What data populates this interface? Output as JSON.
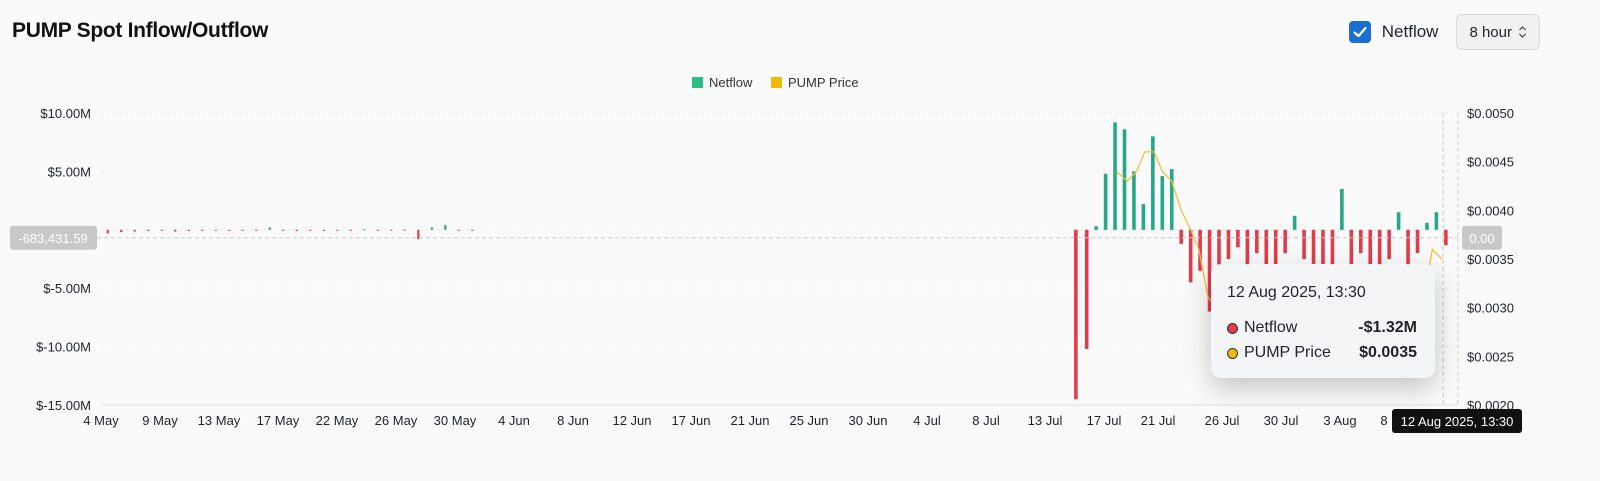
{
  "header": {
    "title": "PUMP Spot Inflow/Outflow",
    "netflow_checkbox_label": "Netflow",
    "interval_select_value": "8 hour"
  },
  "colors": {
    "netflow_positive": "#24a886",
    "netflow_negative": "#e23b49",
    "price_line": "#f0c040",
    "legend_netflow": "#2ebd85",
    "legend_price": "#f0b90b"
  },
  "tooltip": {
    "date": "12 Aug 2025, 13:30",
    "rows": [
      {
        "label": "Netflow",
        "value": "-$1.32M",
        "color": "#e23b49"
      },
      {
        "label": "PUMP Price",
        "value": "$0.0035",
        "color": "#f0b90b"
      }
    ]
  },
  "crosshair": {
    "y_label": "-683,431.59",
    "y_value": -683431.59,
    "right_label": "0.00",
    "x_label": "12 Aug 2025, 13:30",
    "x_index": 99.4
  },
  "chart_data": {
    "type": "bar",
    "title": "PUMP Spot Inflow/Outflow",
    "legend": [
      "Netflow",
      "PUMP Price"
    ],
    "legend_position": "top-center",
    "grid": true,
    "x_tick_labels": [
      "4 May",
      "9 May",
      "13 May",
      "17 May",
      "22 May",
      "26 May",
      "30 May",
      "4 Jun",
      "8 Jun",
      "12 Jun",
      "17 Jun",
      "21 Jun",
      "25 Jun",
      "30 Jun",
      "4 Jul",
      "8 Jul",
      "13 Jul",
      "17 Jul",
      "21 Jul",
      "26 Jul",
      "30 Jul",
      "3 Aug",
      "8",
      "12 Aug 2025, 13:30"
    ],
    "y_left": {
      "ticks": [
        "$10.00M",
        "$5.00M",
        "$0",
        "$-5.00M",
        "$-10.00M",
        "$-15.00M"
      ],
      "range": [
        -15000000,
        10000000
      ]
    },
    "y_right": {
      "ticks": [
        "$0.0050",
        "$0.0045",
        "$0.0040",
        "$0.0035",
        "$0.0030",
        "$0.0025",
        "$0.0020"
      ],
      "range": [
        0.002,
        0.005
      ]
    },
    "series": [
      {
        "name": "Netflow",
        "type": "bar",
        "unit": "$M",
        "x_day_index": [
          0.5,
          1.5,
          2.5,
          3.5,
          4.5,
          5.5,
          6.5,
          7.5,
          8.5,
          9.5,
          10.5,
          11.5,
          12.5,
          13.5,
          14.5,
          15.5,
          16.5,
          17.5,
          18.5,
          19.5,
          20.5,
          21.5,
          22.5,
          23.5,
          24.5,
          25.5,
          26.5,
          27.5,
          72.2,
          73.0,
          73.7,
          74.4,
          75.1,
          75.8,
          76.5,
          77.2,
          77.9,
          78.6,
          79.3,
          80.0,
          80.7,
          81.4,
          82.1,
          82.8,
          83.5,
          84.2,
          84.9,
          85.6,
          86.3,
          87.0,
          87.7,
          88.4,
          89.1,
          89.8,
          90.5,
          91.2,
          91.9,
          92.6,
          93.3,
          94.0,
          94.7,
          95.4,
          96.1,
          96.8,
          97.5,
          98.2,
          98.9,
          99.6
        ],
        "values": [
          -0.3,
          -0.2,
          -0.15,
          -0.1,
          -0.05,
          -0.15,
          -0.1,
          -0.05,
          -0.05,
          -0.1,
          -0.05,
          -0.05,
          0.2,
          -0.05,
          -0.1,
          -0.05,
          -0.1,
          -0.05,
          -0.05,
          0.05,
          -0.05,
          -0.05,
          -0.05,
          -0.8,
          0.2,
          0.4,
          -0.05,
          -0.05,
          -14.5,
          -10.2,
          0.3,
          4.8,
          9.2,
          8.6,
          5.0,
          2.2,
          8.0,
          4.6,
          5.2,
          -1.2,
          -4.5,
          -3.5,
          -7.0,
          -3.0,
          -2.5,
          -1.5,
          -4.0,
          -2.0,
          -6.5,
          -3.0,
          -2.0,
          1.2,
          -2.5,
          -3.5,
          -4.0,
          -5.0,
          3.5,
          -3.0,
          -2.0,
          -4.0,
          -5.0,
          -2.5,
          1.5,
          -3.0,
          -2.0,
          0.6,
          1.5,
          -1.32
        ],
        "color": "#24a886",
        "negative_color": "#e23b49"
      },
      {
        "name": "PUMP Price",
        "type": "line",
        "axis": "right",
        "unit": "$",
        "x_day_index": [
          75.2,
          76.0,
          76.7,
          77.3,
          78.0,
          78.6,
          79.3,
          80.0,
          80.7,
          81.3,
          82.0,
          82.7,
          83.3,
          84.0,
          84.6,
          85.3,
          86.0,
          86.7,
          87.3,
          88.0,
          88.7,
          89.3,
          90.0,
          90.6,
          91.3,
          92.0,
          92.6,
          93.3,
          94.0,
          94.6,
          95.3,
          96.0,
          96.6,
          97.3,
          98.0,
          98.6,
          99.3
        ],
        "values": [
          0.0044,
          0.0043,
          0.0044,
          0.0046,
          0.0046,
          0.0044,
          0.0043,
          0.004,
          0.0038,
          0.0036,
          0.0031,
          0.003,
          0.0029,
          0.0028,
          0.0029,
          0.003,
          0.0031,
          0.003,
          0.0029,
          0.0029,
          0.003,
          0.0031,
          0.0031,
          0.0031,
          0.0031,
          0.003,
          0.003,
          0.0031,
          0.0031,
          0.003,
          0.003,
          0.003,
          0.0029,
          0.003,
          0.0031,
          0.0036,
          0.0035
        ],
        "color": "#f0c040"
      }
    ]
  }
}
